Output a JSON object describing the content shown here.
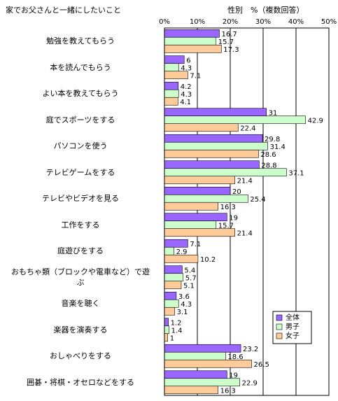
{
  "chart_data": {
    "type": "bar",
    "orientation": "horizontal",
    "title": "家でお父さんと一緒にしたいこと",
    "subtitle": "性別　%（複数回答）",
    "categories": [
      "勉強を教えてもらう",
      "本を読んでもらう",
      "よい本を教えてもらう",
      "庭でスポーツをする",
      "パソコンを使う",
      "テレビゲームをする",
      "テレビやビデオを見る",
      "工作をする",
      "庭遊びをする",
      "おもちゃ類（ブロックや電車など）で遊ぶ",
      "音楽を聴く",
      "楽器を演奏する",
      "おしゃべりをする",
      "囲碁・将棋・オセロなどをする"
    ],
    "series": [
      {
        "name": "全体",
        "color": "#9966ff",
        "values": [
          16.7,
          6,
          4.2,
          31,
          29.8,
          28.8,
          20,
          19,
          7.1,
          5.4,
          3.6,
          1.2,
          23.2,
          19
        ]
      },
      {
        "name": "男子",
        "color": "#ccffcc",
        "values": [
          15.7,
          4.3,
          4.3,
          42.9,
          31.4,
          37.1,
          25.4,
          15.7,
          2.9,
          5.7,
          4.3,
          1.4,
          18.6,
          22.9
        ]
      },
      {
        "name": "女子",
        "color": "#ffcc99",
        "values": [
          17.3,
          7.1,
          4.1,
          22.4,
          28.6,
          21.4,
          16.3,
          21.4,
          10.2,
          5.1,
          3.1,
          1,
          26.5,
          16.3
        ]
      }
    ],
    "xlim": [
      0,
      50
    ],
    "xticks": [
      {
        "value": 0,
        "label": "0%"
      },
      {
        "value": 10,
        "label": "10%"
      },
      {
        "value": 20,
        "label": "20%"
      },
      {
        "value": 30,
        "label": "30%"
      },
      {
        "value": 40,
        "label": "40%"
      },
      {
        "value": 50,
        "label": "50%"
      }
    ],
    "grid": true,
    "legend": "lower right"
  }
}
